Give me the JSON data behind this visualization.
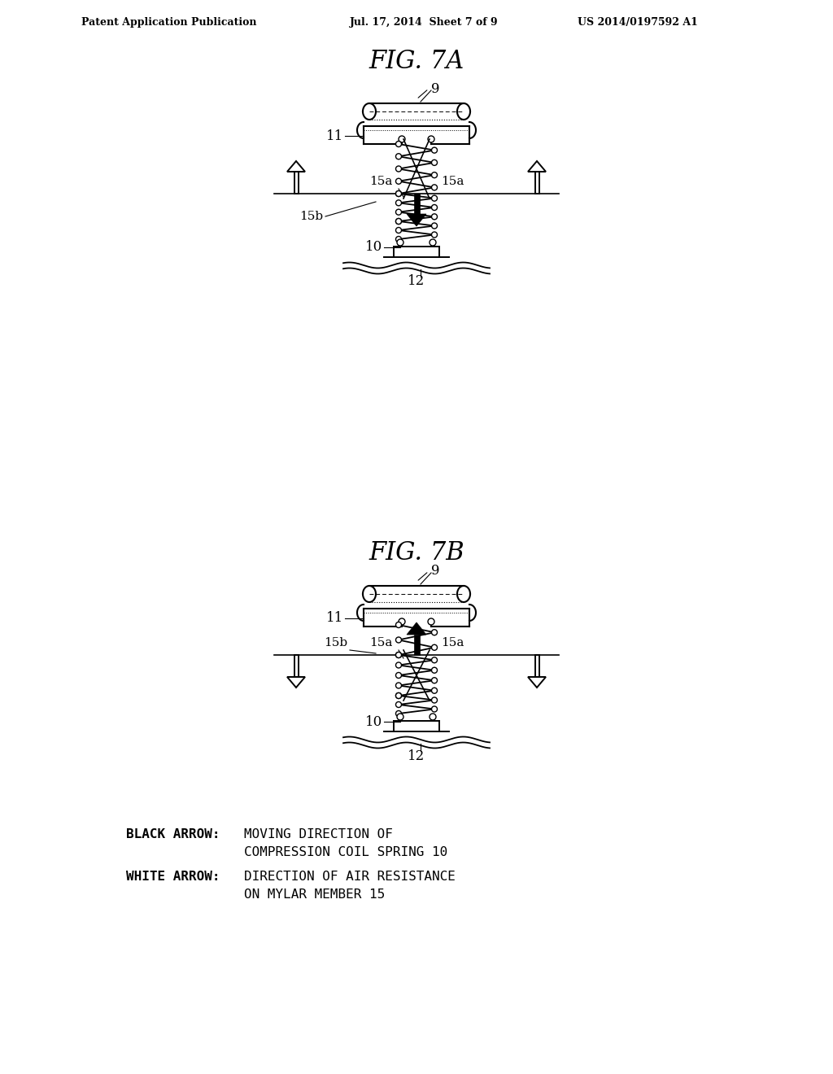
{
  "bg_color": "#ffffff",
  "line_color": "#000000",
  "header_left": "Patent Application Publication",
  "header_mid": "Jul. 17, 2014  Sheet 7 of 9",
  "header_right": "US 2014/0197592 A1",
  "fig7a_title": "FIG. 7A",
  "fig7b_title": "FIG. 7B",
  "leg1a": "BLACK ARROW:",
  "leg1b": "MOVING DIRECTION OF",
  "leg1c": "COMPRESSION COIL SPRING 10",
  "leg2a": "WHITE ARROW:",
  "leg2b": "DIRECTION OF AIR RESISTANCE",
  "leg2c": "ON MYLAR MEMBER 15"
}
